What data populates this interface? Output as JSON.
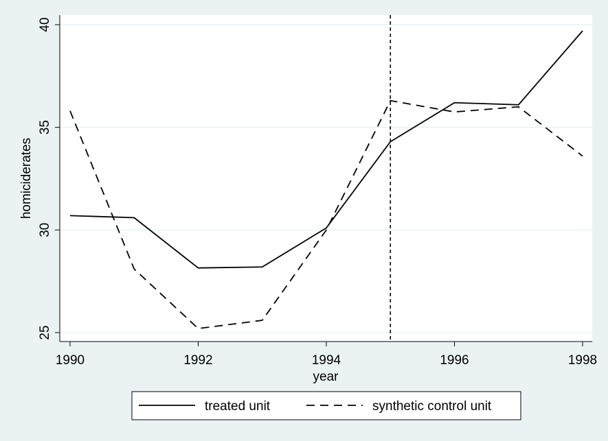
{
  "chart_data": {
    "type": "line",
    "x": [
      1990,
      1991,
      1992,
      1993,
      1994,
      1995,
      1996,
      1997,
      1998
    ],
    "series": [
      {
        "name": "treated unit",
        "line_style": "solid",
        "values": [
          30.7,
          30.6,
          28.15,
          28.2,
          30.1,
          34.3,
          36.2,
          36.1,
          39.7
        ]
      },
      {
        "name": "synthetic control unit",
        "line_style": "dashed",
        "values": [
          35.8,
          28.1,
          25.2,
          25.6,
          30.0,
          36.3,
          35.75,
          36.0,
          33.6
        ]
      }
    ],
    "xlabel": "year",
    "ylabel": "homiciderates",
    "xticks": [
      1990,
      1992,
      1994,
      1996,
      1998
    ],
    "yticks": [
      25,
      30,
      35,
      40
    ],
    "xlim": [
      1990,
      1998
    ],
    "ylim": [
      25,
      40
    ],
    "vline": 1995,
    "grid": "horizontal",
    "legend_position": "bottom",
    "colors": {
      "background": "#eaf2f3",
      "plot_area": "#ffffff",
      "gridline": "#eaf2f3",
      "line": "#000000"
    }
  }
}
